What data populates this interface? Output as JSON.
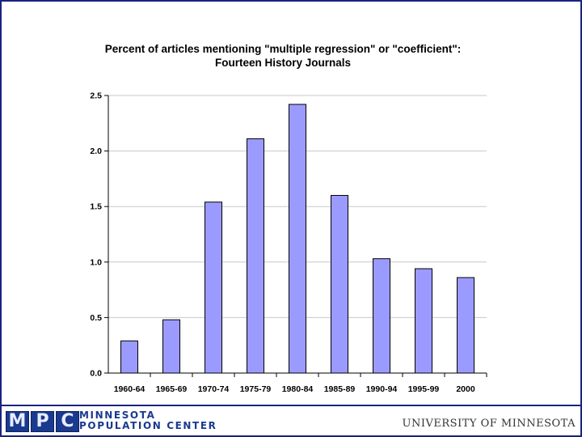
{
  "chart_data": {
    "type": "bar",
    "title": "Percent of articles mentioning \"multiple regression\" or \"coefficient\":",
    "subtitle": "Fourteen History Journals",
    "categories": [
      "1960-64",
      "1965-69",
      "1970-74",
      "1975-79",
      "1980-84",
      "1985-89",
      "1990-94",
      "1995-99",
      "2000"
    ],
    "values": [
      0.29,
      0.48,
      1.54,
      2.11,
      2.42,
      1.6,
      1.03,
      0.94,
      0.86
    ],
    "ylim": [
      0,
      2.5
    ],
    "yticks": [
      "0.0",
      "0.5",
      "1.0",
      "1.5",
      "2.0",
      "2.5"
    ],
    "grid": true,
    "bar_color": "#9b9bff"
  },
  "footer": {
    "logo_letters": [
      "M",
      "P",
      "C"
    ],
    "org_line1": "MINNESOTA",
    "org_line2": "POPULATION CENTER",
    "university": "UNIVERSITY OF MINNESOTA"
  }
}
